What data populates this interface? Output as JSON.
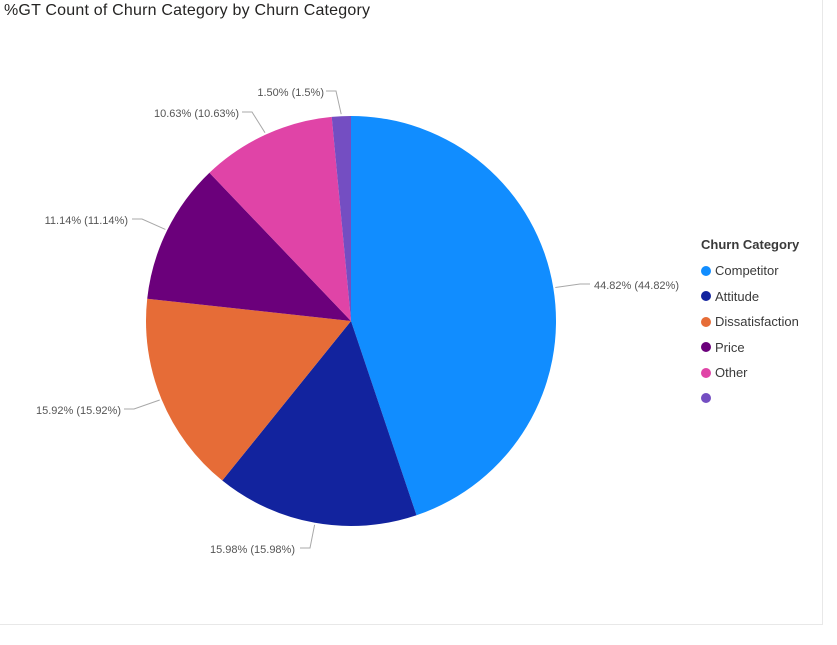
{
  "visual": {
    "title": "%GT Count of Churn Category by Churn Category"
  },
  "chart_data": {
    "type": "pie",
    "title": "%GT Count of Churn Category by Churn Category",
    "categories": [
      "Competitor",
      "Attitude",
      "Dissatisfaction",
      "Price",
      "Other",
      ""
    ],
    "values": [
      44.82,
      15.98,
      15.92,
      11.14,
      10.63,
      1.5
    ],
    "data_labels": [
      "44.82% (44.82%)",
      "15.98% (15.98%)",
      "15.92% (15.92%)",
      "11.14% (11.14%)",
      "10.63% (10.63%)",
      "1.50% (1.5%)"
    ],
    "colors": [
      "#118DFF",
      "#12239E",
      "#E66C37",
      "#6B007B",
      "#E044A7",
      "#744EC2"
    ],
    "legend_title": "Churn Category",
    "legend_position": "right",
    "start": "top, clockwise"
  }
}
